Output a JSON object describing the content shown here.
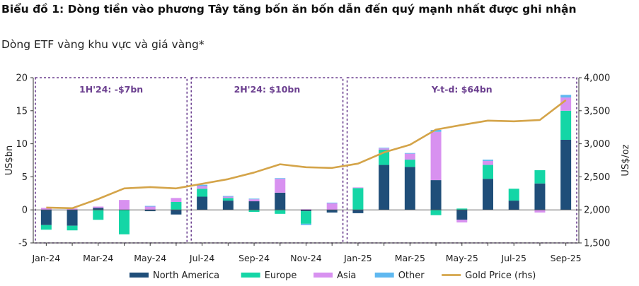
{
  "title": "Biểu đồ 1: Dòng tiền vào phương Tây tăng bốn ăn bốn dẫn đến quý mạnh nhất được ghi nhận",
  "subtitle": "Dòng ETF vàng khu vực và giá vàng*",
  "chart_data": {
    "type": "bar",
    "stacked": true,
    "categories": [
      "Jan-24",
      "Feb-24",
      "Mar-24",
      "Apr-24",
      "May-24",
      "Jun-24",
      "Jul-24",
      "Aug-24",
      "Sep-24",
      "Oct-24",
      "Nov-24",
      "Dec-24",
      "Jan-25",
      "Feb-25",
      "Mar-25",
      "Apr-25",
      "May-25",
      "Jun-25",
      "Jul-25",
      "Aug-25",
      "Sep-25"
    ],
    "x_tick_labels": [
      "Jan-24",
      "",
      "Mar-24",
      "",
      "May-24",
      "",
      "Jul-24",
      "",
      "Sep-24",
      "",
      "Nov-24",
      "",
      "Jan-25",
      "",
      "Mar-25",
      "",
      "May-25",
      "",
      "Jul-25",
      "",
      "Sep-25"
    ],
    "series": [
      {
        "name": "North America",
        "color": "#1f4e79",
        "values": [
          -2.3,
          -2.4,
          0.3,
          0,
          -0.2,
          -0.7,
          2.0,
          1.4,
          1.3,
          2.6,
          -0.2,
          -0.4,
          -0.5,
          6.8,
          6.5,
          4.5,
          -1.5,
          4.7,
          1.4,
          4.0,
          10.6
        ]
      },
      {
        "name": "Europe",
        "color": "#14d6a6",
        "values": [
          -0.7,
          -0.7,
          -1.5,
          -3.7,
          0,
          1.2,
          1.2,
          0.4,
          -0.3,
          -0.6,
          -1.9,
          0,
          3.3,
          2.3,
          1.1,
          -0.8,
          0.2,
          2.1,
          1.8,
          2.0,
          4.4
        ]
      },
      {
        "name": "Asia",
        "color": "#d891f0",
        "values": [
          0.3,
          0.2,
          0.2,
          1.5,
          0.5,
          0.6,
          0.4,
          0.2,
          0.3,
          2.1,
          0.1,
          1.0,
          0.1,
          0.2,
          0.9,
          7.3,
          -0.4,
          0.6,
          0,
          -0.4,
          2.0
        ]
      },
      {
        "name": "Other",
        "color": "#5fb8f0",
        "values": [
          0,
          0,
          0,
          0,
          0.1,
          0,
          0.2,
          0.1,
          0.1,
          0.1,
          -0.2,
          0.1,
          0,
          0.1,
          0.1,
          0.3,
          0,
          0.2,
          0,
          0,
          0.4
        ]
      }
    ],
    "line_series": {
      "name": "Gold Price (rhs)",
      "color": "#d4a449",
      "axis": "right",
      "values": [
        2035,
        2025,
        2165,
        2325,
        2345,
        2325,
        2395,
        2465,
        2565,
        2690,
        2645,
        2635,
        2700,
        2870,
        2985,
        3215,
        3285,
        3350,
        3340,
        3360,
        3660
      ]
    },
    "left_axis": {
      "label": "US$bn",
      "min": -5,
      "max": 20,
      "ticks": [
        "-5",
        "0",
        "5",
        "10",
        "15",
        "20"
      ]
    },
    "right_axis": {
      "label": "US$/oz",
      "min": 1500,
      "max": 4000,
      "ticks": [
        "1,500",
        "2,000",
        "2,500",
        "3,000",
        "3,500",
        "4,000"
      ]
    },
    "annotations": [
      {
        "text": "1H'24: -$7bn",
        "from": 0,
        "to": 5
      },
      {
        "text": "2H'24: $10bn",
        "from": 6,
        "to": 11
      },
      {
        "text": "Y-t-d: $64bn",
        "from": 12,
        "to": 20
      }
    ],
    "legend_position": "bottom",
    "grid": false
  }
}
